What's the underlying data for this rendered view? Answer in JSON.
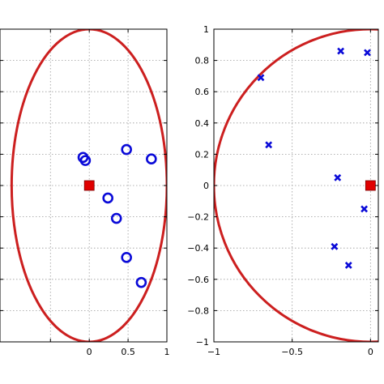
{
  "chart_data": [
    {
      "type": "scatter",
      "title": "",
      "xlabel": "",
      "ylabel": "",
      "xlim": [
        -1.15,
        1.0
      ],
      "ylim": [
        -1.0,
        1.0
      ],
      "x_ticks": [
        -0.5,
        0,
        0.5,
        1
      ],
      "x_tick_labels": [
        "",
        "0",
        "0.5",
        "1"
      ],
      "y_ticks": [
        -1,
        -0.8,
        -0.6,
        -0.4,
        -0.2,
        0,
        0.2,
        0.4,
        0.6,
        0.8,
        1
      ],
      "y_tick_labels": [],
      "grid": true,
      "circle": {
        "center": [
          0,
          0
        ],
        "radius": 1,
        "color": "#cc1f1f"
      },
      "center_marker": {
        "x": 0,
        "y": 0,
        "shape": "square",
        "color": "#e00000"
      },
      "series": [
        {
          "marker": "circle",
          "color": "#0a0ad8",
          "points": [
            {
              "x": -0.08,
              "y": 0.18
            },
            {
              "x": -0.05,
              "y": 0.16
            },
            {
              "x": 0.48,
              "y": 0.23
            },
            {
              "x": 0.8,
              "y": 0.17
            },
            {
              "x": 0.24,
              "y": -0.08
            },
            {
              "x": 0.35,
              "y": -0.21
            },
            {
              "x": 0.48,
              "y": -0.46
            },
            {
              "x": 0.67,
              "y": -0.62
            }
          ]
        }
      ]
    },
    {
      "type": "scatter",
      "title": "",
      "xlabel": "",
      "ylabel": "",
      "xlim": [
        -1.0,
        0.05
      ],
      "ylim": [
        -1.0,
        1.0
      ],
      "x_ticks": [
        -1,
        -0.5,
        0
      ],
      "x_tick_labels": [
        "−1",
        "−0.5",
        "0"
      ],
      "y_ticks": [
        -1,
        -0.8,
        -0.6,
        -0.4,
        -0.2,
        0,
        0.2,
        0.4,
        0.6,
        0.8,
        1
      ],
      "y_tick_labels": [
        "−1",
        "−0.8",
        "−0.6",
        "−0.4",
        "−0.2",
        "0",
        "0.2",
        "0.4",
        "0.6",
        "0.8",
        "1"
      ],
      "grid": true,
      "circle": {
        "center": [
          0,
          0
        ],
        "radius": 1,
        "color": "#cc1f1f"
      },
      "center_marker": {
        "x": 0,
        "y": 0,
        "shape": "square",
        "color": "#e00000"
      },
      "series": [
        {
          "marker": "x",
          "color": "#0a0ad8",
          "points": [
            {
              "x": -0.7,
              "y": 0.69
            },
            {
              "x": -0.65,
              "y": 0.26
            },
            {
              "x": -0.19,
              "y": 0.86
            },
            {
              "x": -0.02,
              "y": 0.85
            },
            {
              "x": -0.21,
              "y": 0.05
            },
            {
              "x": -0.04,
              "y": -0.15
            },
            {
              "x": -0.23,
              "y": -0.39
            },
            {
              "x": -0.14,
              "y": -0.51
            }
          ]
        }
      ]
    }
  ]
}
